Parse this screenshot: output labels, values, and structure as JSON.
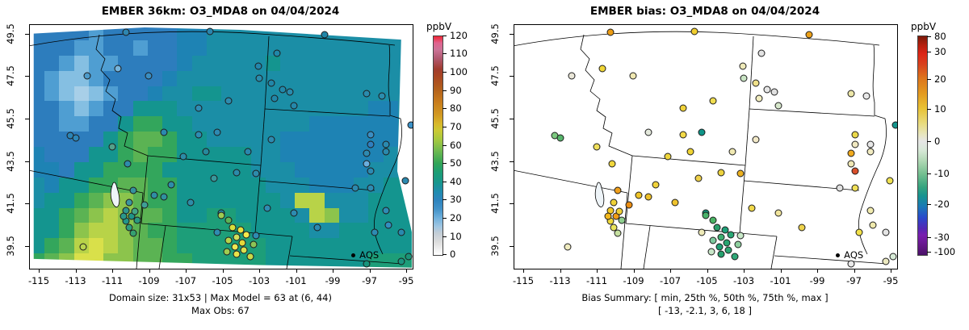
{
  "left_panel": {
    "title": "EMBER 36km: O3_MDA8 on 04/04/2024",
    "caption_line1": "Domain size: 31x53 | Max Model = 63 at (6, 44)",
    "caption_line2": "Max Obs: 67",
    "colorbar": {
      "unit": "ppbV",
      "ticks": [
        [
          "120",
          0
        ],
        [
          "110",
          8.3
        ],
        [
          "100",
          16.7
        ],
        [
          "90",
          25
        ],
        [
          "80",
          33.3
        ],
        [
          "70",
          41.7
        ],
        [
          "60",
          50
        ],
        [
          "50",
          58.3
        ],
        [
          "40",
          66.7
        ],
        [
          "30",
          75
        ],
        [
          "20",
          83.3
        ],
        [
          "10",
          91.7
        ],
        [
          "0",
          100
        ]
      ]
    }
  },
  "right_panel": {
    "title": "EMBER bias: O3_MDA8 on 04/04/2024",
    "caption_line1": "Bias Summary: [ min, 25th %, 50th %, 75th %, max ]",
    "caption_line2": "[ -13,  -2.1,  3,  6,  18 ]",
    "colorbar": {
      "unit": "ppbV",
      "ticks": [
        [
          "80",
          0.5
        ],
        [
          "30",
          7.3
        ],
        [
          "20",
          19.8
        ],
        [
          "10",
          33.6
        ],
        [
          "0",
          48.3
        ],
        [
          "-10",
          63.1
        ],
        [
          "-20",
          77.1
        ],
        [
          "-30",
          92.4
        ],
        [
          "-100",
          99
        ]
      ]
    }
  },
  "axes": {
    "x_tick_labels": [
      "-115",
      "-113",
      "-111",
      "-109",
      "-107",
      "-105",
      "-103",
      "-101",
      "-99",
      "-97",
      "-95"
    ],
    "y_tick_labels": [
      "49.5",
      "47.5",
      "45.5",
      "43.5",
      "41.5",
      "39.5"
    ]
  },
  "legend_label": "AQS",
  "chart_data": {
    "type": "heatmap",
    "description": "Two-panel air-quality map: left = modeled O3_MDA8 raster (ppbV) with AQS station circles colored by observed value; right = model bias at AQS stations.",
    "x_range_lon": [
      -115.5,
      -94.7
    ],
    "y_range_lat": [
      38.5,
      49.95
    ],
    "model_scale_ppbv": [
      0,
      120
    ],
    "bias_scale_ppbv": [
      -100,
      80
    ],
    "raster_palette": {
      "A": "#2d7dbd",
      "B": "#4f9ed2",
      "C": "#85bfe2",
      "D": "#a8cfe8",
      "E": "#1e83b4",
      "F": "#1b8ea6",
      "G": "#14958f",
      "H": "#1d9e79",
      "I": "#33a65c",
      "J": "#5bb353",
      "K": "#8cc44c",
      "L": "#b8d348",
      "M": "#d9e04a"
    },
    "raster_rows": [
      "AAAABAAAAAEEFFFFFFFFFFFFFF",
      "AAABBAABAAEEFFFFFFFFFFFFFF",
      "AABCBBAAAAEFFFFFGFFFFFFFFF",
      "ABCCBAAAAEFFFFFFFFFFFFFFFF",
      "ABCDCBAAEFFGGFFFFFFFFFFFFF",
      "AABCBAAGGGFFFFFFFFFFFFFEEF",
      "AABBAAGIIGGFFFFFFFFEEEEEEF",
      "AAAAAGIJJIGGFFFFFEEEEEEEEF",
      "EAAAGGIJIIGGGGGFFEEEEEEEFF",
      "EEAGGIIIIGGGGGGFFFEEEEEFFF",
      "FEGGIIJJIIGGGGGGFFFEEEFFGG",
      "FGGIJKKJIIGGGGGGGFLLFFFGGG",
      "GGIJKLKJJIGGHHGGGGFLKFFGGG",
      "GGIKLLKJIIHHHHHGGGGFFGGGGG",
      "GIJLMLKJJIHHHHHHGGGGGGGGGG",
      "IJKMMKKJJIIHHHHHGGGGGGGHHH"
    ],
    "stations": [
      [
        25,
        3,
        "#2e86b0",
        "#ec9c14"
      ],
      [
        47,
        2.5,
        "#2a86ae",
        "#f0ce30"
      ],
      [
        77,
        4,
        "#2186a8",
        "#eca018"
      ],
      [
        23,
        18,
        "#77b5dc",
        "#f0d636"
      ],
      [
        15,
        21,
        "#4d9bca",
        "#e9e6d8"
      ],
      [
        31,
        21,
        "#3a8ec2",
        "#efe7b0"
      ],
      [
        44,
        34,
        "#2f8cb4",
        "#f0d23a"
      ],
      [
        10.5,
        45.5,
        "#2a84b6",
        "#7cc87f"
      ],
      [
        12,
        46.5,
        "#2d87b8",
        "#56b46a"
      ],
      [
        35,
        44,
        "#2b89b0",
        "#e4e9dc"
      ],
      [
        49,
        44,
        "#2e8ab2",
        "#0e9488"
      ],
      [
        21.5,
        50,
        "#55a08a",
        "#f0e05c"
      ],
      [
        52,
        31,
        "#2e8cb0",
        "#f0dd50"
      ],
      [
        64.5,
        11.5,
        "#2088a8",
        "#e2e2e2"
      ],
      [
        59.7,
        17,
        "#2486ac",
        "#eee9b8"
      ],
      [
        60,
        22,
        "#2a8cae",
        "#c9e4c4"
      ],
      [
        63,
        24,
        "#2287a9",
        "#efe08a"
      ],
      [
        66,
        26.5,
        "#2189ab",
        "#e6e6e6"
      ],
      [
        68,
        27.5,
        "#2a8bad",
        "#e0e0e0"
      ],
      [
        64,
        30,
        "#2287a9",
        "#f2edc0"
      ],
      [
        69,
        33,
        "#2588aa",
        "#d7e8cc"
      ],
      [
        88,
        28,
        "#2a8cae",
        "#ece6a8"
      ],
      [
        92,
        29,
        "#2b8dad",
        "#e8e8e8"
      ],
      [
        99.5,
        41,
        "#3c92c8",
        "#15958d"
      ],
      [
        63,
        47,
        "#2e8bb0",
        "#f2e9c8"
      ],
      [
        57,
        52,
        "#2a88ae",
        "#f0e9b2"
      ],
      [
        89,
        45,
        "#3a8ec4",
        "#ead84a"
      ],
      [
        89,
        49,
        "#2f7fc0",
        "#f0e8c0"
      ],
      [
        93,
        49,
        "#2a8ab0",
        "#e8e8e8"
      ],
      [
        88,
        57,
        "#6aaede",
        "#eee6b4"
      ],
      [
        88,
        52.6,
        "#2e8ab0",
        "#f0aa1e"
      ],
      [
        89,
        60,
        "#2d8ab2",
        "#d94f2b"
      ],
      [
        85,
        67,
        "#2c89ae",
        "#e0e0e0"
      ],
      [
        89,
        67,
        "#2e8bb2",
        "#f0e058"
      ],
      [
        93,
        52,
        "#2a89ac",
        "#f2ecc2"
      ],
      [
        93,
        76,
        "#2f8cb4",
        "#f2ecb0"
      ],
      [
        93.6,
        82,
        "#338ec0",
        "#efe9ac"
      ],
      [
        90,
        85,
        "#2e8bb2",
        "#f2e149"
      ],
      [
        97,
        85,
        "#2a8aae",
        "#e4e4e4"
      ],
      [
        98,
        64,
        "#2d8ab0",
        "#f0e252"
      ],
      [
        88,
        98,
        "#18947c",
        "#e8e8e8"
      ],
      [
        97,
        97,
        "#1b9680",
        "#ece9c0"
      ],
      [
        99,
        95,
        "#1a9478",
        "#d8ecd8"
      ],
      [
        25.5,
        57,
        "#2e8cac",
        "#f0d63c"
      ],
      [
        27,
        68,
        "#35929e",
        "#f0a01c"
      ],
      [
        26,
        73,
        "#3c96a0",
        "#efd138"
      ],
      [
        32.5,
        70,
        "#2f8ea4",
        "#efc428"
      ],
      [
        35,
        70.5,
        "#30909f",
        "#eec02a"
      ],
      [
        42,
        73,
        "#2e8da8",
        "#efc32e"
      ],
      [
        37,
        65.5,
        "#2e8caa",
        "#f0d23a"
      ],
      [
        50,
        77,
        "#2a8bac",
        "#14947c"
      ],
      [
        44,
        45,
        "#2e8cb2",
        "#f2d947"
      ],
      [
        46,
        52,
        "#27899c",
        "#f0d434"
      ],
      [
        40,
        54,
        "#2b8ca6",
        "#efd63c"
      ],
      [
        48,
        63,
        "#38979b",
        "#eed04a"
      ],
      [
        54,
        60.5,
        "#2b8baa",
        "#ecd23e"
      ],
      [
        59,
        61,
        "#2d8cac",
        "#ecb01e"
      ],
      [
        14,
        91,
        "#b9d44e",
        "#f0ecc0"
      ],
      [
        25,
        76,
        "#2e968c",
        "#f2c928"
      ],
      [
        26.5,
        78.5,
        "#1f9488",
        "#ef9b15"
      ],
      [
        28,
        80,
        "#2a9a80",
        "#8fcf8f"
      ],
      [
        25,
        80.5,
        "#23968a",
        "#efd93c"
      ],
      [
        26,
        83,
        "#2f9c7e",
        "#e9e45c"
      ],
      [
        27,
        85.5,
        "#35a070",
        "#c6e0a0"
      ],
      [
        24.5,
        78.5,
        "#2a988a",
        "#f2b81e"
      ],
      [
        27.5,
        76.5,
        "#42a486",
        "#efcf35"
      ],
      [
        30,
        74,
        "#3f9f96",
        "#eb8d12"
      ],
      [
        50,
        78,
        "#9ecc52",
        "#49b26a"
      ],
      [
        52,
        80,
        "#5cb457",
        "#4ab464"
      ],
      [
        53,
        83,
        "#d6df3c",
        "#2ba06c"
      ],
      [
        55,
        84,
        "#e8e23c",
        "#20a078"
      ],
      [
        56.5,
        86,
        "#f2ea4c",
        "#2aa875"
      ],
      [
        54,
        87,
        "#cfe05c",
        "#3fae71"
      ],
      [
        52,
        88.5,
        "#b5d44a",
        "#7cc89c"
      ],
      [
        55.5,
        89.5,
        "#e3d83a",
        "#28a470"
      ],
      [
        53.5,
        91,
        "#f0e852",
        "#1f9e74"
      ],
      [
        56,
        92.5,
        "#dbe04e",
        "#2da572"
      ],
      [
        54,
        94,
        "#e9e44a",
        "#26a06e"
      ],
      [
        51.5,
        93,
        "#9fcc50",
        "#c8e6c8"
      ],
      [
        57.5,
        95,
        "#c8da48",
        "#30a878"
      ],
      [
        58.5,
        90,
        "#8cc456",
        "#8fd0a0"
      ],
      [
        49,
        85,
        "#2f8cb0",
        "#eeeab8"
      ],
      [
        59,
        86.5,
        "#2e8cb2",
        "#c8e8c8"
      ],
      [
        69,
        77,
        "#2d8bb0",
        "#f0e49c"
      ],
      [
        75,
        83,
        "#2c8ab0",
        "#eed34c"
      ],
      [
        62,
        75,
        "#2e8db2",
        "#f0d84a"
      ]
    ]
  }
}
